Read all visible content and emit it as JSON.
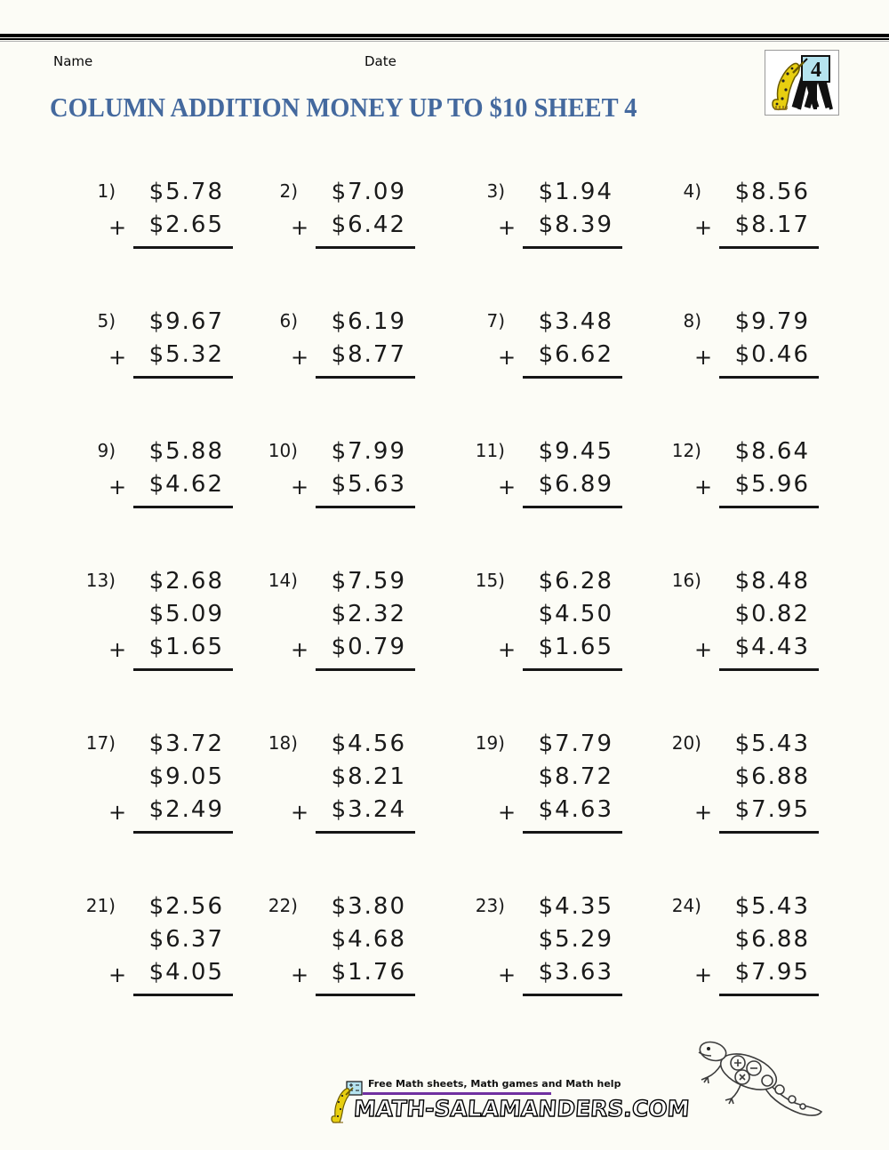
{
  "header": {
    "name_label": "Name",
    "date_label": "Date",
    "logo": {
      "icon": "salamander-writing-icon",
      "sheet_number": "4"
    }
  },
  "title": "COLUMN ADDITION MONEY UP TO $10 SHEET 4",
  "operator": "+",
  "problems": [
    {
      "number": "1)",
      "addends": [
        "$5.78",
        "$2.65"
      ]
    },
    {
      "number": "2)",
      "addends": [
        "$7.09",
        "$6.42"
      ]
    },
    {
      "number": "3)",
      "addends": [
        "$1.94",
        "$8.39"
      ]
    },
    {
      "number": "4)",
      "addends": [
        "$8.56",
        "$8.17"
      ]
    },
    {
      "number": "5)",
      "addends": [
        "$9.67",
        "$5.32"
      ]
    },
    {
      "number": "6)",
      "addends": [
        "$6.19",
        "$8.77"
      ]
    },
    {
      "number": "7)",
      "addends": [
        "$3.48",
        "$6.62"
      ]
    },
    {
      "number": "8)",
      "addends": [
        "$9.79",
        "$0.46"
      ]
    },
    {
      "number": "9)",
      "addends": [
        "$5.88",
        "$4.62"
      ]
    },
    {
      "number": "10)",
      "addends": [
        "$7.99",
        "$5.63"
      ]
    },
    {
      "number": "11)",
      "addends": [
        "$9.45",
        "$6.89"
      ]
    },
    {
      "number": "12)",
      "addends": [
        "$8.64",
        "$5.96"
      ]
    },
    {
      "number": "13)",
      "addends": [
        "$2.68",
        "$5.09",
        "$1.65"
      ]
    },
    {
      "number": "14)",
      "addends": [
        "$7.59",
        "$2.32",
        "$0.79"
      ]
    },
    {
      "number": "15)",
      "addends": [
        "$6.28",
        "$4.50",
        "$1.65"
      ]
    },
    {
      "number": "16)",
      "addends": [
        "$8.48",
        "$0.82",
        "$4.43"
      ]
    },
    {
      "number": "17)",
      "addends": [
        "$3.72",
        "$9.05",
        "$2.49"
      ]
    },
    {
      "number": "18)",
      "addends": [
        "$4.56",
        "$8.21",
        "$3.24"
      ]
    },
    {
      "number": "19)",
      "addends": [
        "$7.79",
        "$8.72",
        "$4.63"
      ]
    },
    {
      "number": "20)",
      "addends": [
        "$5.43",
        "$6.88",
        "$7.95"
      ]
    },
    {
      "number": "21)",
      "addends": [
        "$2.56",
        "$6.37",
        "$4.05"
      ]
    },
    {
      "number": "22)",
      "addends": [
        "$3.80",
        "$4.68",
        "$1.76"
      ]
    },
    {
      "number": "23)",
      "addends": [
        "$4.35",
        "$5.29",
        "$3.63"
      ]
    },
    {
      "number": "24)",
      "addends": [
        "$5.43",
        "$6.88",
        "$7.95"
      ]
    }
  ],
  "footer": {
    "tagline": "Free Math sheets, Math games and Math help",
    "site": "MATH-SALAMANDERS.COM"
  },
  "colors": {
    "title_blue": "#44699e",
    "rule_black": "#000000",
    "footer_purple": "#7030a0",
    "salamander_yellow": "#e8cf10",
    "sign_blue": "#b5e3ef"
  }
}
